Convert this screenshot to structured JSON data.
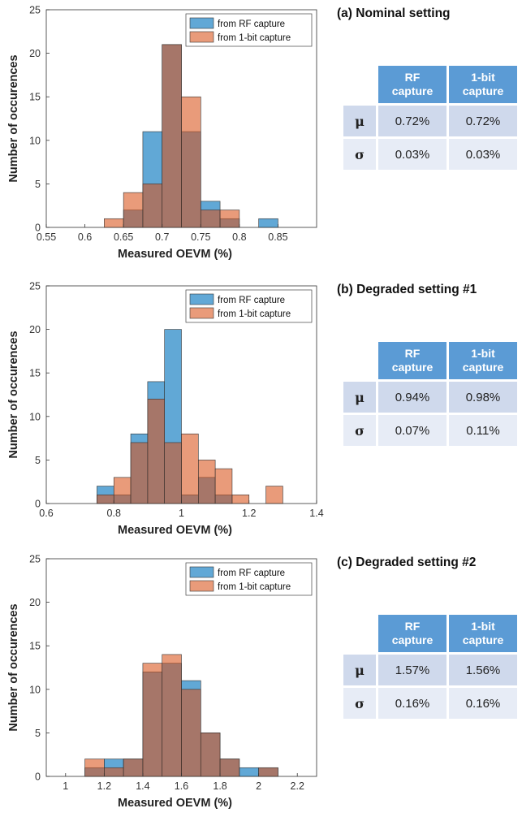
{
  "chart_data": [
    {
      "type": "bar",
      "title": "(a) Nominal setting",
      "xlabel": "Measured OEVM (%)",
      "ylabel": "Number of occurences",
      "xlim": [
        0.55,
        0.9
      ],
      "ylim": [
        0,
        25
      ],
      "xticks": [
        "0.55",
        "0.6",
        "0.65",
        "0.7",
        "0.75",
        "0.8",
        "0.85"
      ],
      "yticks": [
        "0",
        "5",
        "10",
        "15",
        "20",
        "25"
      ],
      "legend_position": "top-right",
      "bin_width": 0.025,
      "series": [
        {
          "name": "from RF capture",
          "color": "#0072bd",
          "bins": [
            0.65,
            0.675,
            0.7,
            0.725,
            0.75,
            0.775,
            0.825
          ],
          "values": [
            2,
            11,
            21,
            11,
            3,
            1,
            1
          ]
        },
        {
          "name": "from 1-bit capture",
          "color": "#d95319",
          "bins": [
            0.625,
            0.65,
            0.675,
            0.7,
            0.725,
            0.75,
            0.775
          ],
          "values": [
            1,
            4,
            5,
            21,
            15,
            2,
            2
          ]
        }
      ],
      "table": {
        "headers": [
          "RF\ncapture",
          "1-bit\ncapture"
        ],
        "rows": [
          {
            "symbol": "μ",
            "rf": "0.72%",
            "onebit": "0.72%"
          },
          {
            "symbol": "σ",
            "rf": "0.03%",
            "onebit": "0.03%"
          }
        ]
      }
    },
    {
      "type": "bar",
      "title": "(b) Degraded setting #1",
      "xlabel": "Measured OEVM (%)",
      "ylabel": "Number of occurences",
      "xlim": [
        0.6,
        1.4
      ],
      "ylim": [
        0,
        25
      ],
      "xticks": [
        "0.6",
        "0.8",
        "1",
        "1.2",
        "1.4"
      ],
      "yticks": [
        "0",
        "5",
        "10",
        "15",
        "20",
        "25"
      ],
      "legend_position": "top-right",
      "bin_width": 0.05,
      "series": [
        {
          "name": "from RF capture",
          "color": "#0072bd",
          "bins": [
            0.75,
            0.8,
            0.85,
            0.9,
            0.95,
            1.0,
            1.05,
            1.1
          ],
          "values": [
            2,
            1,
            8,
            14,
            20,
            1,
            3,
            1
          ]
        },
        {
          "name": "from 1-bit capture",
          "color": "#d95319",
          "bins": [
            0.75,
            0.8,
            0.85,
            0.9,
            0.95,
            1.0,
            1.05,
            1.1,
            1.15,
            1.25
          ],
          "values": [
            1,
            3,
            7,
            12,
            7,
            8,
            5,
            4,
            1,
            2
          ]
        }
      ],
      "table": {
        "headers": [
          "RF\ncapture",
          "1-bit\ncapture"
        ],
        "rows": [
          {
            "symbol": "μ",
            "rf": "0.94%",
            "onebit": "0.98%"
          },
          {
            "symbol": "σ",
            "rf": "0.07%",
            "onebit": "0.11%"
          }
        ]
      }
    },
    {
      "type": "bar",
      "title": "(c) Degraded setting #2",
      "xlabel": "Measured OEVM (%)",
      "ylabel": "Number of occurences",
      "xlim": [
        0.9,
        2.3
      ],
      "ylim": [
        0,
        25
      ],
      "xticks": [
        "1",
        "1.2",
        "1.4",
        "1.6",
        "1.8",
        "2",
        "2.2"
      ],
      "yticks": [
        "0",
        "5",
        "10",
        "15",
        "20",
        "25"
      ],
      "legend_position": "top-right",
      "bin_width": 0.1,
      "series": [
        {
          "name": "from RF capture",
          "color": "#0072bd",
          "bins": [
            1.1,
            1.2,
            1.3,
            1.4,
            1.5,
            1.6,
            1.7,
            1.8,
            1.9,
            2.0
          ],
          "values": [
            1,
            2,
            2,
            12,
            13,
            11,
            5,
            2,
            1,
            1
          ]
        },
        {
          "name": "from 1-bit capture",
          "color": "#d95319",
          "bins": [
            1.1,
            1.2,
            1.3,
            1.4,
            1.5,
            1.6,
            1.7,
            1.8,
            2.0
          ],
          "values": [
            2,
            1,
            2,
            13,
            14,
            10,
            5,
            2,
            1
          ]
        }
      ],
      "table": {
        "headers": [
          "RF\ncapture",
          "1-bit\ncapture"
        ],
        "rows": [
          {
            "symbol": "μ",
            "rf": "1.57%",
            "onebit": "1.56%"
          },
          {
            "symbol": "σ",
            "rf": "0.16%",
            "onebit": "0.16%"
          }
        ]
      }
    }
  ]
}
